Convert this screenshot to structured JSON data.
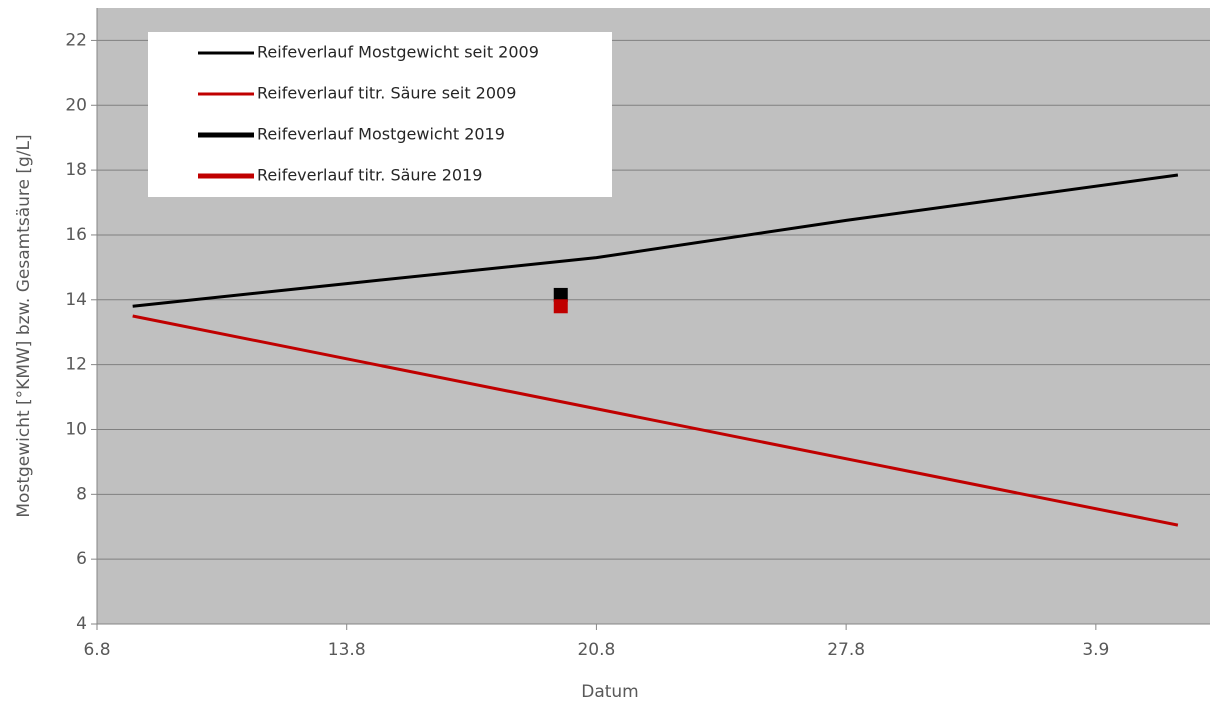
{
  "chart_data": {
    "type": "line",
    "xlabel": "Datum",
    "ylabel": "Mostgewicht [°KMW] bzw. Gesamtsäure [g/L]",
    "xlim": [
      6,
      37.2
    ],
    "xticks": [
      {
        "value": 6,
        "label": "6.8"
      },
      {
        "value": 13,
        "label": "13.8"
      },
      {
        "value": 20,
        "label": "20.8"
      },
      {
        "value": 27,
        "label": "27.8"
      },
      {
        "value": 34,
        "label": "3.9"
      }
    ],
    "ylim": [
      4,
      23
    ],
    "yticks": [
      4,
      6,
      8,
      10,
      12,
      14,
      16,
      18,
      20,
      22
    ],
    "grid": true,
    "legend": "upper left",
    "series": [
      {
        "name": "Reifeverlauf Mostgewicht seit 2009",
        "color": "#000000",
        "line_width": 3,
        "x": [
          7,
          13,
          20,
          27,
          36.3
        ],
        "values": [
          13.8,
          14.5,
          15.3,
          16.45,
          17.85
        ]
      },
      {
        "name": "Reifeverlauf titr. Säure seit 2009",
        "color": "#c00000",
        "line_width": 3,
        "x": [
          7,
          36.3
        ],
        "values": [
          13.5,
          7.05
        ]
      },
      {
        "name": "Reifeverlauf Mostgewicht 2019",
        "color": "#000000",
        "line_width": 5,
        "marker": "square",
        "x": [
          19
        ],
        "values": [
          14.15
        ]
      },
      {
        "name": "Reifeverlauf titr. Säure 2019",
        "color": "#c00000",
        "line_width": 5,
        "marker": "square",
        "x": [
          19
        ],
        "values": [
          13.8
        ]
      }
    ]
  }
}
